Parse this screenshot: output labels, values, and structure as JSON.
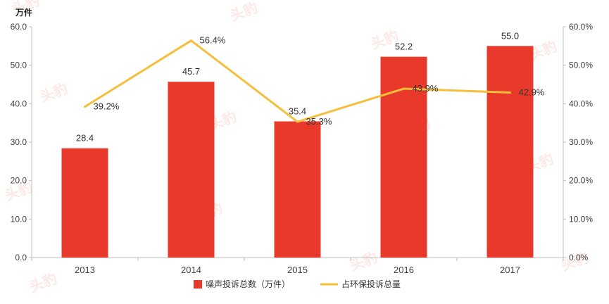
{
  "chart_data": {
    "type": "bar",
    "categories": [
      "2013",
      "2014",
      "2015",
      "2016",
      "2017"
    ],
    "series": [
      {
        "name": "噪声投诉总数（万件）",
        "type": "bar",
        "axis": "left",
        "color": "#e8392b",
        "values": [
          28.4,
          45.7,
          35.4,
          52.2,
          55.0
        ],
        "labels": [
          "28.4",
          "45.7",
          "35.4",
          "52.2",
          "55.0"
        ]
      },
      {
        "name": "占环保投诉总量",
        "type": "line",
        "axis": "right",
        "color": "#f5bf3e",
        "values": [
          39.2,
          56.4,
          35.3,
          43.9,
          42.9
        ],
        "labels": [
          "39.2%",
          "56.4%",
          "35.3%",
          "43.9%",
          "42.9%"
        ]
      }
    ],
    "ylabel": "万件",
    "ylim": [
      0,
      60
    ],
    "y2lim": [
      0,
      60
    ],
    "left_ticks": [
      "0.0",
      "10.0",
      "20.0",
      "30.0",
      "40.0",
      "50.0",
      "60.0"
    ],
    "right_ticks": [
      "0.0%",
      "10.0%",
      "20.0%",
      "30.0%",
      "40.0%",
      "50.0%",
      "60.0%"
    ],
    "grid": false,
    "legend": "bottom"
  },
  "watermark": "头豹"
}
